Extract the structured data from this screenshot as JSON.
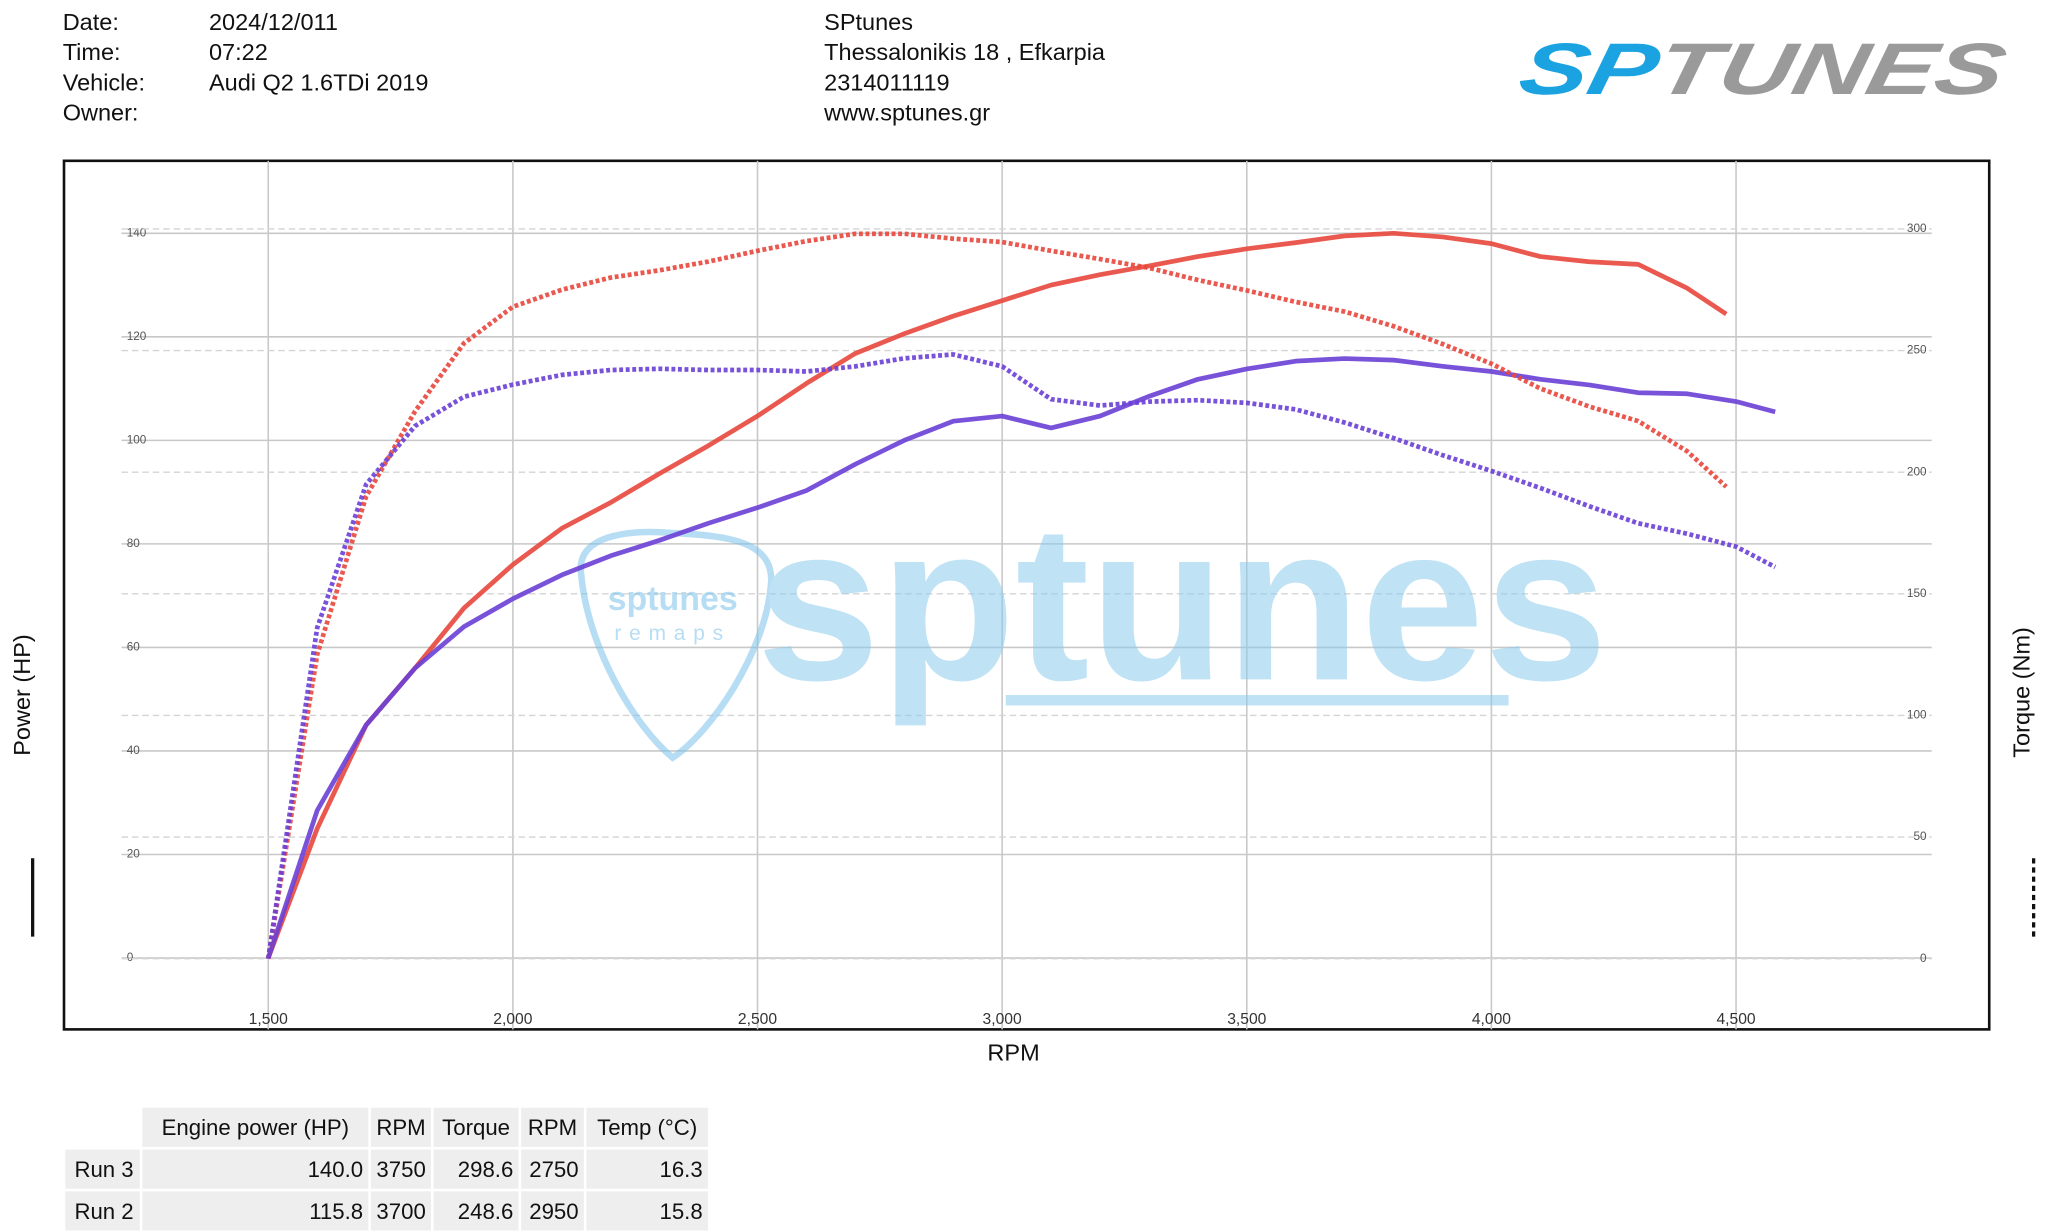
{
  "header": {
    "labels": [
      "Date:",
      "Time:",
      "Vehicle:",
      "Owner:"
    ],
    "values": [
      "2024/12/011",
      "07:22",
      "Audi Q2 1.6TDi 2019"
    ],
    "shop": [
      "SPtunes",
      "Thessalonikis 18 , Efkarpia",
      "2314011119",
      "www.sptunes.gr"
    ],
    "logo_left": "SP",
    "logo_right": "TUNES"
  },
  "watermark": {
    "big": "sptunes",
    "pick_top": "sptunes",
    "pick_bottom": "remaps"
  },
  "chart_data": {
    "type": "line",
    "x_label": "RPM",
    "y_label": "Power (HP)",
    "y2_label": "Torque (Nm)",
    "xlim": [
      1200,
      4900
    ],
    "xticks": [
      {
        "value": 1500,
        "label": "1,500"
      },
      {
        "value": 2000,
        "label": "2,000"
      },
      {
        "value": 2500,
        "label": "2,500"
      },
      {
        "value": 3000,
        "label": "3,000"
      },
      {
        "value": 3500,
        "label": "3,500"
      },
      {
        "value": 4000,
        "label": "4,000"
      },
      {
        "value": 4500,
        "label": "4,500"
      }
    ],
    "ylim": [
      -10,
      154
    ],
    "yticks": [
      0,
      20,
      40,
      60,
      80,
      100,
      120,
      140
    ],
    "y2lim": [
      -21,
      328
    ],
    "y2ticks": [
      0,
      50,
      100,
      150,
      200,
      250,
      300
    ],
    "grid": true,
    "series": [
      {
        "color": "#e8473c",
        "style": "solid",
        "axis": "y",
        "x": [
          1500,
          1600,
          1700,
          1800,
          1900,
          2000,
          2100,
          2200,
          2300,
          2400,
          2500,
          2600,
          2700,
          2800,
          2900,
          3000,
          3100,
          3200,
          3300,
          3400,
          3500,
          3600,
          3700,
          3800,
          3900,
          4000,
          4100,
          4200,
          4300,
          4400,
          4480
        ],
        "values": [
          0,
          25,
          45,
          56,
          67.6,
          76,
          83,
          88,
          93.6,
          99,
          104.7,
          111,
          116.8,
          120.6,
          124,
          127,
          130,
          132,
          133.7,
          135.5,
          137,
          138.2,
          139.5,
          140,
          139.3,
          138,
          135.5,
          134.5,
          134,
          129.4,
          124.4
        ]
      },
      {
        "color": "#6a3fd6",
        "style": "solid",
        "axis": "y",
        "x": [
          1500,
          1600,
          1700,
          1800,
          1900,
          2000,
          2100,
          2200,
          2300,
          2400,
          2500,
          2600,
          2700,
          2800,
          2900,
          3000,
          3100,
          3200,
          3300,
          3400,
          3500,
          3600,
          3700,
          3800,
          3900,
          4000,
          4100,
          4200,
          4300,
          4400,
          4500,
          4580
        ],
        "values": [
          0,
          28.5,
          45,
          56,
          64,
          69.4,
          74,
          77.7,
          80.7,
          84,
          87,
          90.3,
          95.4,
          100,
          103.7,
          104.7,
          102.4,
          104.7,
          108.5,
          111.8,
          113.8,
          115.3,
          115.8,
          115.5,
          114.3,
          113.3,
          111.8,
          110.7,
          109.2,
          109,
          107.5,
          105.5
        ]
      },
      {
        "color": "#e8473c",
        "style": "dotted",
        "axis": "y2",
        "x": [
          1500,
          1600,
          1700,
          1800,
          1900,
          2000,
          2100,
          2200,
          2300,
          2400,
          2500,
          2600,
          2700,
          2800,
          2900,
          3000,
          3100,
          3200,
          3300,
          3400,
          3500,
          3600,
          3700,
          3800,
          3900,
          4000,
          4100,
          4200,
          4300,
          4400,
          4480
        ],
        "values": [
          0,
          125,
          190,
          225,
          253,
          268,
          275,
          280,
          283,
          286.6,
          291,
          295,
          298,
          298,
          296,
          294.6,
          291,
          287.6,
          284,
          279,
          274.7,
          270,
          266,
          260,
          252.7,
          244.6,
          234.4,
          227,
          221,
          208.6,
          194
        ]
      },
      {
        "color": "#6a3fd6",
        "style": "dotted",
        "axis": "y2",
        "x": [
          1500,
          1600,
          1700,
          1800,
          1900,
          2000,
          2100,
          2200,
          2300,
          2400,
          2500,
          2600,
          2700,
          2800,
          2900,
          3000,
          3100,
          3200,
          3300,
          3400,
          3500,
          3600,
          3700,
          3800,
          3900,
          4000,
          4100,
          4200,
          4300,
          4400,
          4500,
          4580
        ],
        "values": [
          0,
          136,
          195,
          219,
          231,
          236,
          240,
          242,
          242.5,
          242,
          242,
          241.4,
          243.5,
          246.8,
          248.4,
          243.5,
          230,
          227.4,
          229,
          229.6,
          228.5,
          225.8,
          220.4,
          214,
          207,
          200.5,
          193.5,
          186,
          179,
          174.7,
          169.4,
          161
        ]
      }
    ]
  },
  "table": {
    "headers": [
      "Engine power (HP)",
      "RPM",
      "Torque",
      "RPM",
      "Temp (°C)"
    ],
    "rows": [
      {
        "color": "#e03a2a",
        "cells": [
          "Run 3",
          "140.0",
          "3750",
          "298.6",
          "2750",
          "16.3"
        ]
      },
      {
        "color": "#4a2fc0",
        "cells": [
          "Run 2",
          "115.8",
          "3700",
          "248.6",
          "2950",
          "15.8"
        ]
      }
    ]
  }
}
